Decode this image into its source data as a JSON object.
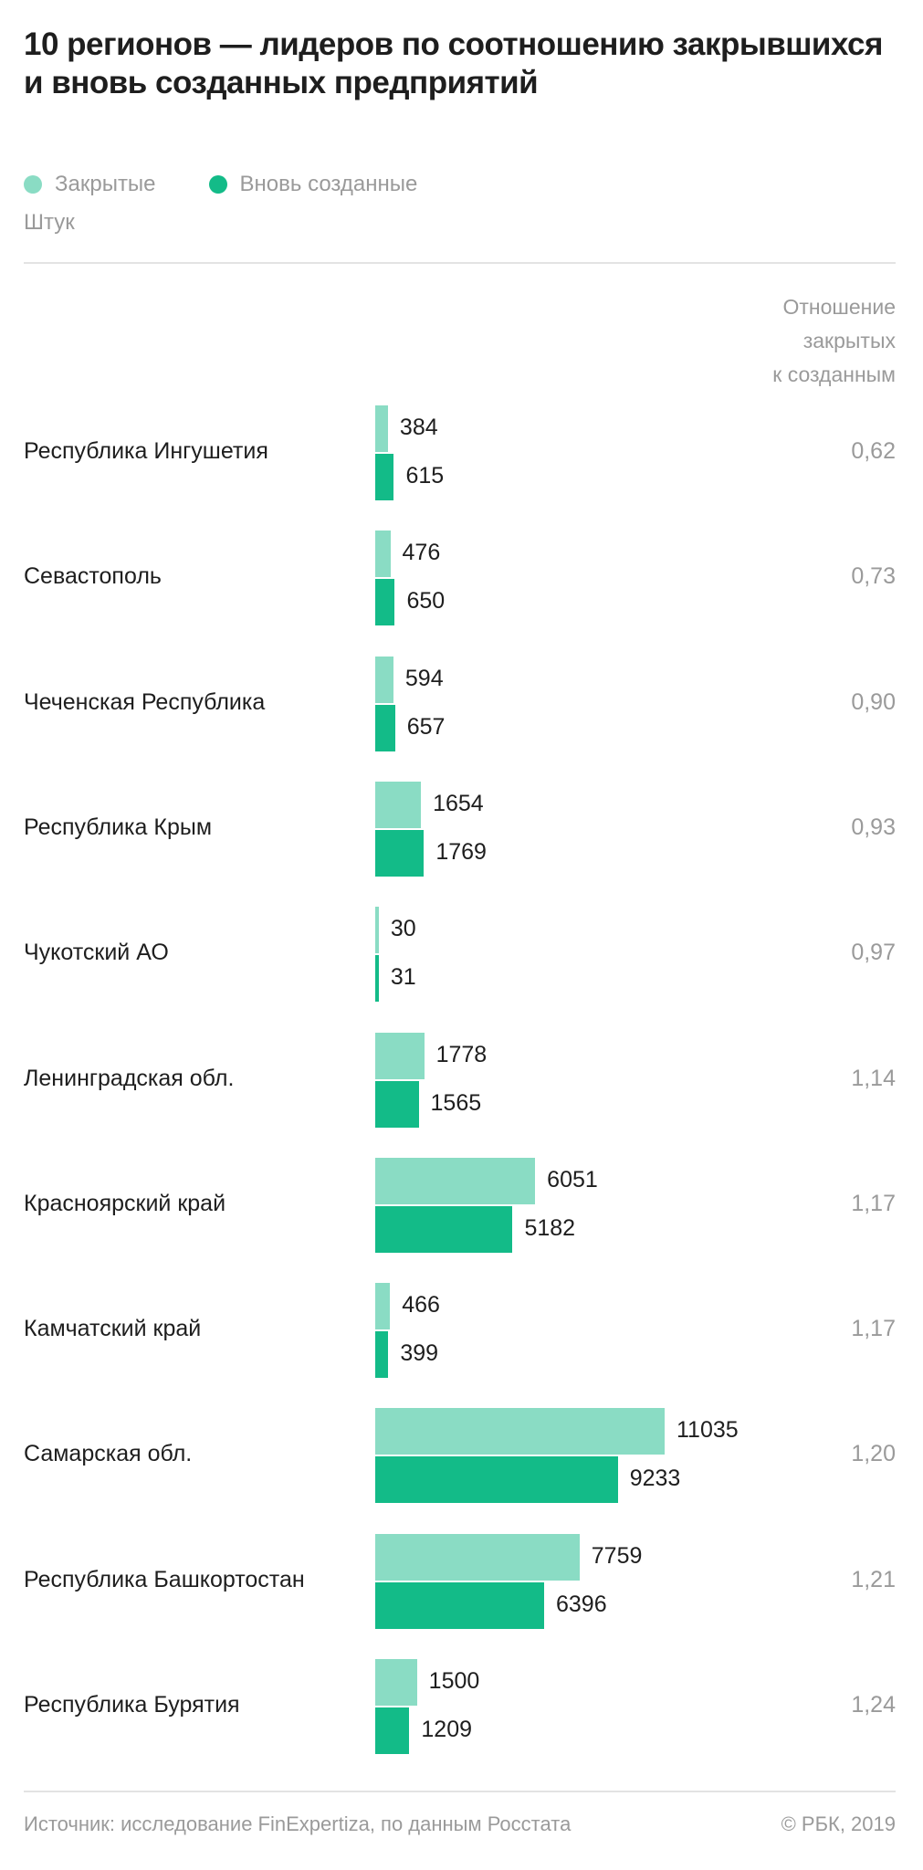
{
  "chart_data": {
    "type": "bar",
    "title": "10 регионов — лидеров по соотношению закрывшихся и вновь созданных предприятий",
    "unit": "Штук",
    "ratio_header": [
      "Отношение",
      "закрытых",
      "к созданным"
    ],
    "colors": {
      "closed": "#8adcc4",
      "new": "#13bb88"
    },
    "series": [
      {
        "name": "Закрытые",
        "values": [
          384,
          476,
          594,
          1654,
          30,
          1778,
          6051,
          466,
          11035,
          7759,
          1500
        ]
      },
      {
        "name": "Вновь созданные",
        "values": [
          615,
          650,
          657,
          1769,
          31,
          1565,
          5182,
          399,
          9233,
          6396,
          1209
        ]
      }
    ],
    "categories": [
      "Республика Ингушетия",
      "Севастополь",
      "Чеченская Республика",
      "Республика Крым",
      "Чукотский АО",
      "Ленинградская обл.",
      "Красноярский край",
      "Камчатский край",
      "Самарская обл.",
      "Республика Башкортостан",
      "Республика Бурятия"
    ],
    "ratios": [
      "0,62",
      "0,73",
      "0,90",
      "0,93",
      "0,97",
      "1,14",
      "1,17",
      "1,17",
      "1,20",
      "1,21",
      "1,24"
    ],
    "xlim": [
      0,
      11035
    ],
    "legend": "top-left"
  },
  "footer": {
    "source": "Источник: исследование FinExpertiza, по данным Росстата",
    "copyright": "© РБК, 2019"
  }
}
